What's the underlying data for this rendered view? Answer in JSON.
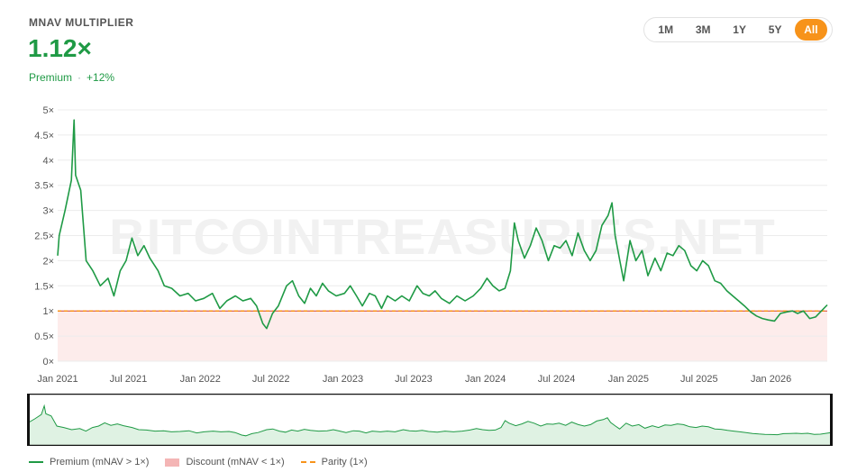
{
  "header": {
    "title": "MNAV MULTIPLIER",
    "value": "1.12×",
    "status": "Premium",
    "change": "+12%"
  },
  "ranges": [
    "1M",
    "3M",
    "1Y",
    "5Y",
    "All"
  ],
  "active_range": "All",
  "watermark": "BITCOINTREASURIES.NET",
  "legend": {
    "premium": "Premium (mNAV > 1×)",
    "discount": "Discount (mNAV < 1×)",
    "parity": "Parity (1×)"
  },
  "colors": {
    "premium": "#1f9a45",
    "discount": "#fdeceb",
    "parity": "#f7931a",
    "accent": "#f7931a"
  },
  "chart_data": {
    "type": "line",
    "x_start": "2021-01-01",
    "x_end": "2026-05-25",
    "ylim": [
      0,
      5
    ],
    "y_ticks": [
      "0×",
      "0.5×",
      "1×",
      "1.5×",
      "2×",
      "2.5×",
      "3×",
      "3.5×",
      "4×",
      "4.5×",
      "5×"
    ],
    "x_ticks": [
      "Jan 2021",
      "Jul 2021",
      "Jan 2022",
      "Jul 2022",
      "Jan 2023",
      "Jul 2023",
      "Jan 2024",
      "Jul 2024",
      "Jan 2025",
      "Jul 2025",
      "Jan 2026"
    ],
    "x_tick_dates": [
      "2021-01-01",
      "2021-07-01",
      "2022-01-01",
      "2022-07-01",
      "2023-01-01",
      "2023-07-01",
      "2024-01-01",
      "2024-07-01",
      "2025-01-01",
      "2025-07-01",
      "2026-01-01"
    ],
    "parity": 1,
    "series": [
      {
        "name": "Premium (mNAV > 1×)",
        "points": [
          [
            "2021-01-01",
            2.1
          ],
          [
            "2021-01-05",
            2.5
          ],
          [
            "2021-01-20",
            3.0
          ],
          [
            "2021-02-05",
            3.6
          ],
          [
            "2021-02-12",
            4.8
          ],
          [
            "2021-02-16",
            3.7
          ],
          [
            "2021-03-01",
            3.4
          ],
          [
            "2021-03-15",
            2.0
          ],
          [
            "2021-04-01",
            1.8
          ],
          [
            "2021-04-20",
            1.5
          ],
          [
            "2021-05-10",
            1.65
          ],
          [
            "2021-05-25",
            1.3
          ],
          [
            "2021-06-10",
            1.8
          ],
          [
            "2021-06-25",
            2.0
          ],
          [
            "2021-07-10",
            2.45
          ],
          [
            "2021-07-25",
            2.1
          ],
          [
            "2021-08-10",
            2.3
          ],
          [
            "2021-08-25",
            2.05
          ],
          [
            "2021-09-15",
            1.8
          ],
          [
            "2021-10-01",
            1.5
          ],
          [
            "2021-10-20",
            1.45
          ],
          [
            "2021-11-10",
            1.3
          ],
          [
            "2021-12-01",
            1.35
          ],
          [
            "2021-12-20",
            1.2
          ],
          [
            "2022-01-10",
            1.25
          ],
          [
            "2022-02-01",
            1.35
          ],
          [
            "2022-02-20",
            1.05
          ],
          [
            "2022-03-10",
            1.2
          ],
          [
            "2022-04-01",
            1.3
          ],
          [
            "2022-04-20",
            1.2
          ],
          [
            "2022-05-10",
            1.25
          ],
          [
            "2022-05-25",
            1.1
          ],
          [
            "2022-06-10",
            0.75
          ],
          [
            "2022-06-20",
            0.65
          ],
          [
            "2022-07-05",
            0.95
          ],
          [
            "2022-07-20",
            1.1
          ],
          [
            "2022-08-10",
            1.5
          ],
          [
            "2022-08-25",
            1.6
          ],
          [
            "2022-09-10",
            1.3
          ],
          [
            "2022-09-25",
            1.15
          ],
          [
            "2022-10-10",
            1.45
          ],
          [
            "2022-10-25",
            1.3
          ],
          [
            "2022-11-10",
            1.55
          ],
          [
            "2022-11-25",
            1.4
          ],
          [
            "2022-12-15",
            1.3
          ],
          [
            "2023-01-05",
            1.35
          ],
          [
            "2023-01-20",
            1.5
          ],
          [
            "2023-02-05",
            1.3
          ],
          [
            "2023-02-20",
            1.1
          ],
          [
            "2023-03-10",
            1.35
          ],
          [
            "2023-03-25",
            1.3
          ],
          [
            "2023-04-10",
            1.05
          ],
          [
            "2023-04-25",
            1.3
          ],
          [
            "2023-05-15",
            1.2
          ],
          [
            "2023-06-01",
            1.3
          ],
          [
            "2023-06-20",
            1.2
          ],
          [
            "2023-07-10",
            1.5
          ],
          [
            "2023-07-25",
            1.35
          ],
          [
            "2023-08-10",
            1.3
          ],
          [
            "2023-08-25",
            1.4
          ],
          [
            "2023-09-10",
            1.25
          ],
          [
            "2023-10-01",
            1.15
          ],
          [
            "2023-10-20",
            1.3
          ],
          [
            "2023-11-10",
            1.2
          ],
          [
            "2023-12-01",
            1.3
          ],
          [
            "2023-12-20",
            1.45
          ],
          [
            "2024-01-05",
            1.65
          ],
          [
            "2024-01-20",
            1.5
          ],
          [
            "2024-02-05",
            1.4
          ],
          [
            "2024-02-20",
            1.45
          ],
          [
            "2024-03-05",
            1.8
          ],
          [
            "2024-03-15",
            2.75
          ],
          [
            "2024-03-25",
            2.4
          ],
          [
            "2024-04-10",
            2.05
          ],
          [
            "2024-04-25",
            2.3
          ],
          [
            "2024-05-10",
            2.65
          ],
          [
            "2024-05-25",
            2.4
          ],
          [
            "2024-06-10",
            2.0
          ],
          [
            "2024-06-25",
            2.3
          ],
          [
            "2024-07-10",
            2.25
          ],
          [
            "2024-07-25",
            2.4
          ],
          [
            "2024-08-10",
            2.1
          ],
          [
            "2024-08-25",
            2.55
          ],
          [
            "2024-09-10",
            2.2
          ],
          [
            "2024-09-25",
            2.0
          ],
          [
            "2024-10-10",
            2.2
          ],
          [
            "2024-10-25",
            2.7
          ],
          [
            "2024-11-10",
            2.9
          ],
          [
            "2024-11-20",
            3.15
          ],
          [
            "2024-11-28",
            2.5
          ],
          [
            "2024-12-10",
            2.0
          ],
          [
            "2024-12-20",
            1.6
          ],
          [
            "2025-01-05",
            2.4
          ],
          [
            "2025-01-20",
            2.0
          ],
          [
            "2025-02-05",
            2.2
          ],
          [
            "2025-02-20",
            1.7
          ],
          [
            "2025-03-10",
            2.05
          ],
          [
            "2025-03-25",
            1.8
          ],
          [
            "2025-04-10",
            2.15
          ],
          [
            "2025-04-25",
            2.1
          ],
          [
            "2025-05-10",
            2.3
          ],
          [
            "2025-05-25",
            2.2
          ],
          [
            "2025-06-10",
            1.9
          ],
          [
            "2025-06-25",
            1.8
          ],
          [
            "2025-07-10",
            2.0
          ],
          [
            "2025-07-25",
            1.9
          ],
          [
            "2025-08-10",
            1.6
          ],
          [
            "2025-08-25",
            1.55
          ],
          [
            "2025-09-10",
            1.4
          ],
          [
            "2025-09-25",
            1.3
          ],
          [
            "2025-10-10",
            1.2
          ],
          [
            "2025-10-25",
            1.1
          ],
          [
            "2025-11-10",
            0.98
          ],
          [
            "2025-11-25",
            0.9
          ],
          [
            "2025-12-10",
            0.85
          ],
          [
            "2025-12-25",
            0.82
          ],
          [
            "2026-01-10",
            0.8
          ],
          [
            "2026-01-25",
            0.95
          ],
          [
            "2026-02-10",
            0.98
          ],
          [
            "2026-02-25",
            1.0
          ],
          [
            "2026-03-10",
            0.95
          ],
          [
            "2026-03-25",
            1.0
          ],
          [
            "2026-04-10",
            0.85
          ],
          [
            "2026-04-25",
            0.88
          ],
          [
            "2026-05-10",
            1.0
          ],
          [
            "2026-05-25",
            1.12
          ]
        ]
      }
    ]
  }
}
